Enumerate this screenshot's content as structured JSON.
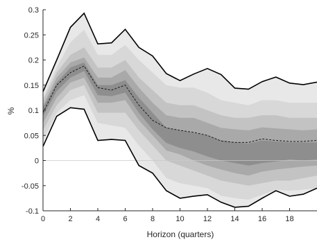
{
  "chart_data": {
    "type": "area",
    "xlabel": "Horizon (quarters)",
    "ylabel": "%",
    "xlim": [
      0,
      20
    ],
    "ylim": [
      -0.1,
      0.3
    ],
    "xticks": [
      0,
      2,
      4,
      6,
      8,
      10,
      12,
      14,
      16,
      18
    ],
    "xtick_labels": [
      "0",
      "2",
      "4",
      "6",
      "8",
      "10",
      "12",
      "14",
      "16",
      "18"
    ],
    "yticks": [
      -0.1,
      -0.05,
      0,
      0.05,
      0.1,
      0.15,
      0.2,
      0.25,
      0.3
    ],
    "ytick_labels": [
      "-0.1",
      "-0.05",
      "0",
      "0.05",
      "0.1",
      "0.15",
      "0.2",
      "0.25",
      "0.3"
    ],
    "grid": false,
    "x": [
      0,
      1,
      2,
      3,
      4,
      5,
      6,
      7,
      8,
      9,
      10,
      11,
      12,
      13,
      14,
      15,
      16,
      17,
      18,
      19,
      20
    ],
    "bands": [
      {
        "lower": [
          0.028,
          0.088,
          0.105,
          0.102,
          0.04,
          0.042,
          0.04,
          -0.01,
          -0.025,
          -0.06,
          -0.075,
          -0.071,
          -0.068,
          -0.083,
          -0.093,
          -0.091,
          -0.075,
          -0.06,
          -0.071,
          -0.067,
          -0.055
        ],
        "upper": [
          0.137,
          0.2,
          0.265,
          0.293,
          0.232,
          0.234,
          0.261,
          0.225,
          0.208,
          0.173,
          0.159,
          0.172,
          0.183,
          0.171,
          0.144,
          0.142,
          0.157,
          0.166,
          0.154,
          0.151,
          0.156
        ],
        "color": "#e8e8e8"
      },
      {
        "lower": [
          0.04,
          0.095,
          0.12,
          0.13,
          0.075,
          0.07,
          0.065,
          0.03,
          0.0,
          -0.035,
          -0.045,
          -0.05,
          -0.055,
          -0.07,
          -0.075,
          -0.078,
          -0.068,
          -0.058,
          -0.06,
          -0.058,
          -0.055
        ],
        "upper": [
          0.125,
          0.185,
          0.235,
          0.26,
          0.21,
          0.21,
          0.23,
          0.2,
          0.175,
          0.15,
          0.145,
          0.145,
          0.135,
          0.12,
          0.115,
          0.11,
          0.12,
          0.12,
          0.115,
          0.115,
          0.115
        ],
        "color": "#d8d8d8"
      },
      {
        "lower": [
          0.06,
          0.11,
          0.14,
          0.15,
          0.095,
          0.095,
          0.095,
          0.06,
          0.03,
          0.0,
          -0.01,
          -0.02,
          -0.03,
          -0.04,
          -0.045,
          -0.05,
          -0.045,
          -0.04,
          -0.04,
          -0.035,
          -0.03
        ],
        "upper": [
          0.12,
          0.175,
          0.21,
          0.225,
          0.185,
          0.185,
          0.2,
          0.165,
          0.14,
          0.115,
          0.11,
          0.11,
          0.1,
          0.09,
          0.085,
          0.085,
          0.09,
          0.09,
          0.085,
          0.085,
          0.085
        ],
        "color": "#c3c3c3"
      },
      {
        "lower": [
          0.075,
          0.125,
          0.155,
          0.165,
          0.115,
          0.115,
          0.12,
          0.08,
          0.05,
          0.02,
          0.012,
          0.0,
          -0.01,
          -0.018,
          -0.025,
          -0.03,
          -0.022,
          -0.018,
          -0.015,
          -0.012,
          -0.01
        ],
        "upper": [
          0.11,
          0.165,
          0.195,
          0.205,
          0.165,
          0.165,
          0.18,
          0.145,
          0.115,
          0.09,
          0.085,
          0.085,
          0.075,
          0.065,
          0.062,
          0.06,
          0.066,
          0.064,
          0.062,
          0.06,
          0.062
        ],
        "color": "#a9a9a9"
      },
      {
        "lower": [
          0.088,
          0.138,
          0.165,
          0.178,
          0.13,
          0.128,
          0.135,
          0.095,
          0.062,
          0.035,
          0.025,
          0.018,
          0.008,
          0.0,
          -0.005,
          -0.01,
          -0.005,
          -0.002,
          0.002,
          0.0,
          0.002
        ],
        "upper": [
          0.105,
          0.155,
          0.185,
          0.195,
          0.15,
          0.15,
          0.16,
          0.125,
          0.095,
          0.065,
          0.06,
          0.055,
          0.05,
          0.04,
          0.036,
          0.034,
          0.04,
          0.038,
          0.036,
          0.036,
          0.036
        ],
        "color": "#8e8e8e"
      }
    ],
    "median": [
      0.095,
      0.15,
      0.175,
      0.188,
      0.145,
      0.14,
      0.15,
      0.11,
      0.08,
      0.065,
      0.06,
      0.056,
      0.05,
      0.039,
      0.036,
      0.036,
      0.043,
      0.04,
      0.038,
      0.038,
      0.04
    ],
    "outer_lines": {
      "lower": [
        0.028,
        0.088,
        0.105,
        0.102,
        0.04,
        0.042,
        0.04,
        -0.01,
        -0.025,
        -0.06,
        -0.075,
        -0.071,
        -0.068,
        -0.083,
        -0.093,
        -0.091,
        -0.075,
        -0.06,
        -0.071,
        -0.067,
        -0.055
      ],
      "upper": [
        0.137,
        0.2,
        0.265,
        0.293,
        0.232,
        0.234,
        0.261,
        0.225,
        0.208,
        0.173,
        0.159,
        0.172,
        0.183,
        0.171,
        0.144,
        0.142,
        0.157,
        0.166,
        0.154,
        0.151,
        0.156
      ]
    },
    "colors": {
      "outer_line": "#000000",
      "median_line": "#1a1a1a",
      "zero_line": "#c8c8c8",
      "axis": "#262626"
    }
  }
}
